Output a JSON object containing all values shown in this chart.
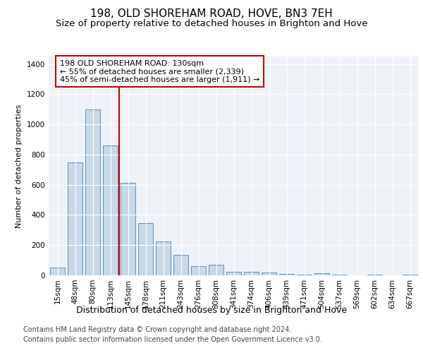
{
  "title1": "198, OLD SHOREHAM ROAD, HOVE, BN3 7EH",
  "title2": "Size of property relative to detached houses in Brighton and Hove",
  "xlabel": "Distribution of detached houses by size in Brighton and Hove",
  "ylabel": "Number of detached properties",
  "categories": [
    "15sqm",
    "48sqm",
    "80sqm",
    "113sqm",
    "145sqm",
    "178sqm",
    "211sqm",
    "243sqm",
    "276sqm",
    "308sqm",
    "341sqm",
    "374sqm",
    "406sqm",
    "439sqm",
    "471sqm",
    "504sqm",
    "537sqm",
    "569sqm",
    "602sqm",
    "634sqm",
    "667sqm"
  ],
  "values": [
    50,
    750,
    1100,
    860,
    615,
    345,
    225,
    135,
    60,
    70,
    25,
    25,
    20,
    10,
    5,
    12,
    5,
    0,
    5,
    0,
    5
  ],
  "bar_color": "#c8d8e8",
  "bar_edge_color": "#5590c0",
  "vline_x": 3.5,
  "vline_color": "#cc0000",
  "annotation_line1": "198 OLD SHOREHAM ROAD: 130sqm",
  "annotation_line2": "← 55% of detached houses are smaller (2,339)",
  "annotation_line3": "45% of semi-detached houses are larger (1,911) →",
  "annotation_box_color": "#ffffff",
  "annotation_box_edge": "#cc0000",
  "ylim": [
    0,
    1450
  ],
  "yticks": [
    0,
    200,
    400,
    600,
    800,
    1000,
    1200,
    1400
  ],
  "background_color": "#eef2f8",
  "plot_bg_color": "#eef2f8",
  "footer1": "Contains HM Land Registry data © Crown copyright and database right 2024.",
  "footer2": "Contains public sector information licensed under the Open Government Licence v3.0.",
  "title1_fontsize": 11,
  "title2_fontsize": 9.5,
  "xlabel_fontsize": 9,
  "ylabel_fontsize": 8,
  "annotation_fontsize": 8,
  "footer_fontsize": 7,
  "tick_fontsize": 7.5
}
